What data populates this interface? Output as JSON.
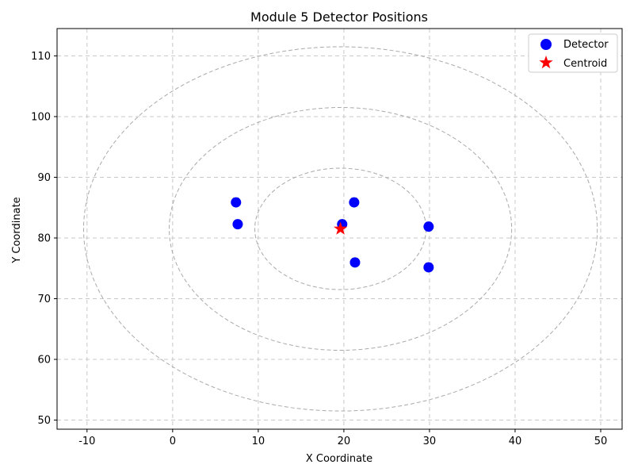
{
  "chart_data": {
    "type": "scatter",
    "title": "Module 5 Detector Positions",
    "xlabel": "X Coordinate",
    "ylabel": "Y Coordinate",
    "xlim": [
      -13.5,
      52.5
    ],
    "ylim": [
      48.5,
      114.5
    ],
    "xticks": [
      -10,
      0,
      10,
      20,
      30,
      40,
      50
    ],
    "yticks": [
      50,
      60,
      70,
      80,
      90,
      100,
      110
    ],
    "grid": true,
    "legend_position": "top-right",
    "series": [
      {
        "name": "Detector",
        "marker": "circle",
        "color": "#0000ff",
        "points": [
          {
            "x": 7.4,
            "y": 86.0
          },
          {
            "x": 7.6,
            "y": 82.4
          },
          {
            "x": 19.8,
            "y": 82.4
          },
          {
            "x": 21.2,
            "y": 86.0
          },
          {
            "x": 21.3,
            "y": 76.1
          },
          {
            "x": 29.9,
            "y": 82.0
          },
          {
            "x": 29.9,
            "y": 75.3
          }
        ]
      },
      {
        "name": "Centroid",
        "marker": "star",
        "color": "#ff0000",
        "points": [
          {
            "x": 19.6,
            "y": 81.5
          }
        ]
      }
    ],
    "circles": [
      {
        "cx": 19.6,
        "cy": 81.5,
        "r": 10
      },
      {
        "cx": 19.6,
        "cy": 81.5,
        "r": 20
      },
      {
        "cx": 19.6,
        "cy": 81.5,
        "r": 30
      }
    ],
    "circle_color": "#aaaaaa",
    "grid_color": "#c8c8c8"
  }
}
